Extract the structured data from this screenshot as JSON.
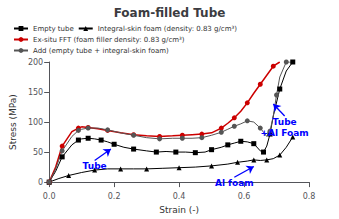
{
  "chart_data": {
    "type": "line",
    "title": "Foam-filled Tube",
    "xlabel": "Strain (-)",
    "ylabel": "Stress (MPa)",
    "xlim": [
      0.0,
      0.8
    ],
    "ylim": [
      0,
      200
    ],
    "xticks": [
      {
        "value": 0.0,
        "label": "0.0"
      },
      0.2,
      0.4,
      0.6,
      0.8
    ],
    "yticks": [
      0,
      50,
      100,
      150,
      200
    ],
    "grid": false,
    "legend": "upper left",
    "series": [
      {
        "name": "Empty tube",
        "color": "#000000",
        "marker": "square",
        "x": [
          0.0,
          0.02,
          0.04,
          0.07,
          0.09,
          0.1,
          0.12,
          0.14,
          0.16,
          0.18,
          0.2,
          0.23,
          0.26,
          0.3,
          0.33,
          0.36,
          0.39,
          0.42,
          0.45,
          0.48,
          0.5,
          0.53,
          0.55,
          0.57,
          0.59,
          0.61,
          0.63,
          0.65,
          0.66,
          0.67,
          0.68,
          0.69,
          0.71,
          0.73,
          0.75
        ],
        "values": [
          0,
          18,
          42,
          62,
          70,
          72,
          73,
          72,
          70,
          67,
          63,
          58,
          55,
          52,
          50,
          51,
          50,
          50,
          49,
          50,
          54,
          58,
          62,
          65,
          68,
          67,
          64,
          52,
          50,
          60,
          80,
          110,
          155,
          185,
          200
        ]
      },
      {
        "name": "Integral-skin foam (density: 0.83 g/cm³)",
        "color": "#000000",
        "marker": "triangle",
        "x": [
          0.0,
          0.03,
          0.06,
          0.1,
          0.14,
          0.18,
          0.22,
          0.26,
          0.3,
          0.35,
          0.4,
          0.45,
          0.5,
          0.55,
          0.58,
          0.61,
          0.63,
          0.65,
          0.67,
          0.69,
          0.71,
          0.73,
          0.75
        ],
        "values": [
          0,
          6,
          11,
          16,
          20,
          22,
          22,
          22,
          22,
          23,
          24,
          25,
          27,
          30,
          33,
          35,
          37,
          36,
          37,
          39,
          45,
          58,
          75
        ]
      },
      {
        "name": "Ex-situ FFT (foam filler density: 0.83 g/cm³)",
        "color": "#cc0000",
        "marker": "circle",
        "x": [
          0.0,
          0.02,
          0.04,
          0.07,
          0.09,
          0.1,
          0.12,
          0.15,
          0.18,
          0.22,
          0.26,
          0.3,
          0.34,
          0.38,
          0.41,
          0.44,
          0.47,
          0.5,
          0.53,
          0.55,
          0.57,
          0.59,
          0.61,
          0.63,
          0.65,
          0.67,
          0.69,
          0.71
        ],
        "values": [
          0,
          25,
          60,
          84,
          90,
          92,
          91,
          89,
          86,
          82,
          79,
          77,
          76,
          77,
          78,
          79,
          80,
          82,
          90,
          98,
          107,
          118,
          132,
          148,
          163,
          178,
          193,
          200
        ]
      },
      {
        "name": "Add (empty tube + integral-skin foam)",
        "color": "#555555",
        "marker": "circle",
        "x": [
          0.0,
          0.02,
          0.04,
          0.07,
          0.09,
          0.1,
          0.12,
          0.15,
          0.18,
          0.22,
          0.26,
          0.3,
          0.34,
          0.38,
          0.41,
          0.44,
          0.47,
          0.5,
          0.53,
          0.55,
          0.57,
          0.59,
          0.61,
          0.63,
          0.65,
          0.67,
          0.68,
          0.69,
          0.7,
          0.71,
          0.73,
          0.75
        ],
        "values": [
          0,
          22,
          52,
          76,
          86,
          88,
          90,
          90,
          87,
          82,
          78,
          74,
          72,
          73,
          73,
          73,
          74,
          78,
          83,
          88,
          93,
          97,
          102,
          100,
          90,
          76,
          85,
          110,
          145,
          175,
          200,
          200
        ]
      }
    ],
    "annotations": [
      {
        "text": "Tube",
        "xy": [
          0.19,
          55
        ],
        "xytext": [
          0.14,
          36
        ],
        "color": "blue"
      },
      {
        "text": "Al foam",
        "xy": [
          0.63,
          26
        ],
        "xytext": [
          0.57,
          8
        ],
        "color": "blue"
      },
      {
        "text": "Tube\n+Al Foam",
        "xy": [
          0.69,
          130
        ],
        "xytext": [
          0.725,
          110
        ],
        "color": "blue"
      }
    ]
  }
}
